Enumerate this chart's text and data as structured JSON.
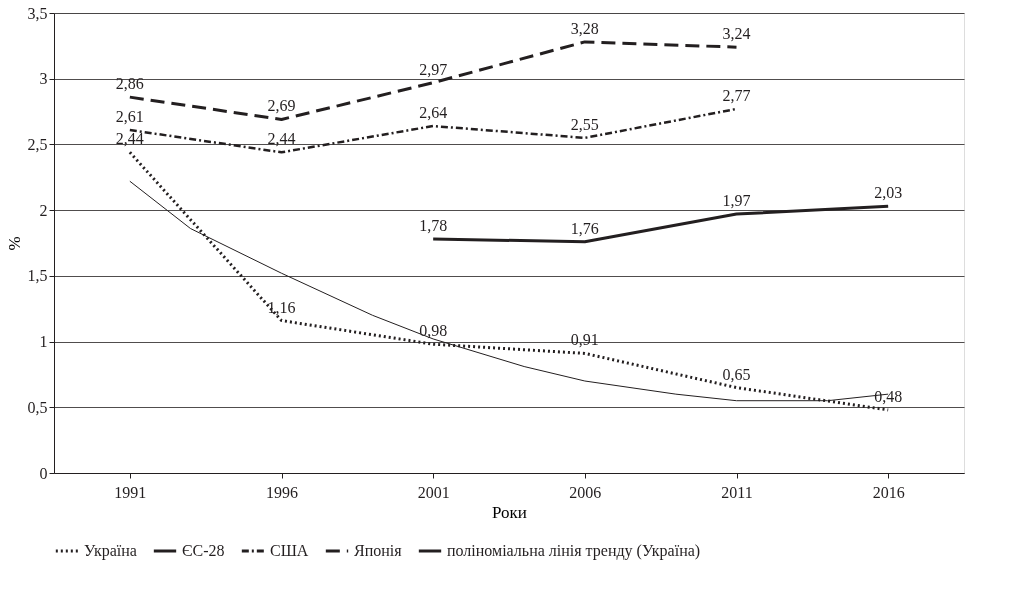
{
  "chart_data": {
    "type": "line",
    "xlabel": "Роки",
    "ylabel": "%",
    "x": [
      1991,
      1996,
      2001,
      2006,
      2011,
      2016
    ],
    "xlim": [
      1988.5,
      2018.5
    ],
    "xticks": [
      1991,
      1996,
      2001,
      2006,
      2011,
      2016
    ],
    "ylim": [
      0,
      3.5
    ],
    "yticks": [
      0,
      {
        "value": 0.5,
        "label": "0,5"
      },
      1,
      {
        "value": 1.5,
        "label": "1,5"
      },
      2,
      {
        "value": 2.5,
        "label": "2,5"
      },
      3,
      {
        "value": 3.5,
        "label": "3,5"
      }
    ],
    "grid": "y",
    "legend": "bottom",
    "series": [
      {
        "name": "Україна",
        "color": "#231f20",
        "line_style": "dotted",
        "values": [
          2.44,
          1.16,
          0.98,
          0.91,
          0.65,
          0.48
        ],
        "value_labels": [
          "2,44",
          "1,16",
          "0,98",
          "0,91",
          "0,65",
          "0,48"
        ]
      },
      {
        "name": "ЄС-28",
        "color": "#231f20",
        "line_style": "solid",
        "values": [
          null,
          null,
          1.78,
          1.76,
          1.97,
          2.03
        ],
        "value_labels": [
          null,
          null,
          "1,78",
          "1,76",
          "1,97",
          "2,03"
        ]
      },
      {
        "name": "США",
        "color": "#231f20",
        "line_style": "dashdot",
        "values": [
          2.61,
          2.44,
          2.64,
          2.55,
          2.77,
          null
        ],
        "value_labels": [
          "2,61",
          "2,44",
          "2,64",
          "2,55",
          "2,77",
          null
        ]
      },
      {
        "name": "Японія",
        "color": "#231f20",
        "line_style": "dashed",
        "values": [
          2.86,
          2.69,
          2.97,
          3.28,
          3.24,
          null
        ],
        "value_labels": [
          "2,86",
          "2,69",
          "2,97",
          "3,28",
          "3,24",
          null
        ]
      },
      {
        "name": "поліноміальна лінія тренду (Україна)",
        "color": "#231f20",
        "line_style": "solid",
        "x": [
          1991,
          1993,
          1996,
          1999,
          2001,
          2004,
          2006,
          2009,
          2011,
          2014,
          2016
        ],
        "values": [
          2.22,
          1.86,
          1.52,
          1.2,
          1.02,
          0.81,
          0.7,
          0.6,
          0.55,
          0.55,
          0.6
        ]
      }
    ]
  }
}
